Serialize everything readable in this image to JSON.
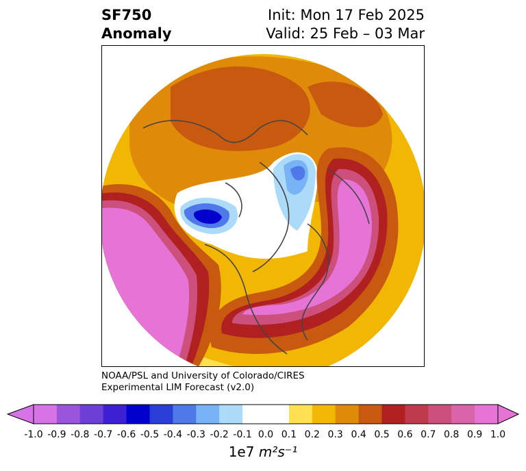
{
  "header": {
    "variable": "SF750",
    "kind": "Anomaly",
    "init": "Init: Mon 17 Feb 2025",
    "valid": "Valid: 25 Feb – 03 Mar"
  },
  "credit": {
    "line1": "NOAA/PSL and University of Colorado/CIRES",
    "line2": "Experimental LIM Forecast (v2.0)"
  },
  "colorbar": {
    "ticks": [
      "-1.0",
      "-0.9",
      "-0.8",
      "-0.7",
      "-0.6",
      "-0.5",
      "-0.4",
      "-0.3",
      "-0.2",
      "-0.1",
      "0.0",
      "0.1",
      "0.2",
      "0.3",
      "0.4",
      "0.5",
      "0.6",
      "0.7",
      "0.8",
      "0.9",
      "1.0"
    ],
    "colors": [
      "#d673e6",
      "#9b55dd",
      "#6c3fd6",
      "#3c1fd0",
      "#0000cc",
      "#2a3fd8",
      "#4f78e8",
      "#78b4f5",
      "#acdbfa",
      "#ffffff",
      "#ffffff",
      "#ffe050",
      "#f2b705",
      "#e08a0a",
      "#c85a10",
      "#b02020",
      "#c03a4e",
      "#cc4f7c",
      "#d964aa",
      "#e674d6"
    ],
    "units_prefix": "1e7",
    "units": "m²s⁻¹"
  }
}
